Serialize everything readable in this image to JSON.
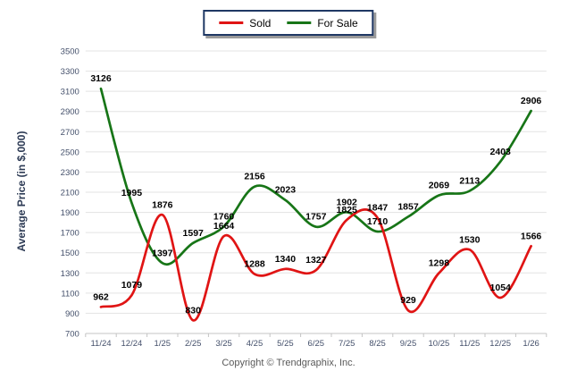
{
  "legend": {
    "items": [
      {
        "label": "Sold",
        "color": "#e01414"
      },
      {
        "label": "For Sale",
        "color": "#177517"
      }
    ],
    "border_color": "#1f3864"
  },
  "y_axis_title": "Average Price (in $,000)",
  "footer": {
    "text": "Copyright © Trendgraphix, Inc."
  },
  "colors": {
    "sold_line": "#e01414",
    "for_sale_line": "#177517",
    "grid_line": "#e3e3e3",
    "axis_line": "#c4c4c4",
    "tick_text": "#44506b",
    "data_label_text": "#000000"
  },
  "chart_data": {
    "type": "line",
    "title": "",
    "xlabel": "",
    "ylabel": "Average Price (in $,000)",
    "ylim": [
      700,
      3500
    ],
    "ytick_step": 200,
    "grid": "horizontal",
    "legend_position": "top-center",
    "smooth": true,
    "data_labels": true,
    "categories": [
      "11/24",
      "12/24",
      "1/25",
      "2/25",
      "3/25",
      "4/25",
      "5/25",
      "6/25",
      "7/25",
      "8/25",
      "9/25",
      "10/25",
      "11/25",
      "12/25",
      "1/26"
    ],
    "series": [
      {
        "name": "Sold",
        "color": "#e01414",
        "values": [
          962,
          1079,
          1876,
          830,
          1664,
          1288,
          1340,
          1327,
          1825,
          1847,
          929,
          1298,
          1530,
          1054,
          1566
        ]
      },
      {
        "name": "For Sale",
        "color": "#177517",
        "values": [
          3126,
          1995,
          1397,
          1597,
          1760,
          2156,
          2023,
          1757,
          1902,
          1710,
          1857,
          2069,
          2113,
          2403,
          2906
        ]
      }
    ]
  }
}
